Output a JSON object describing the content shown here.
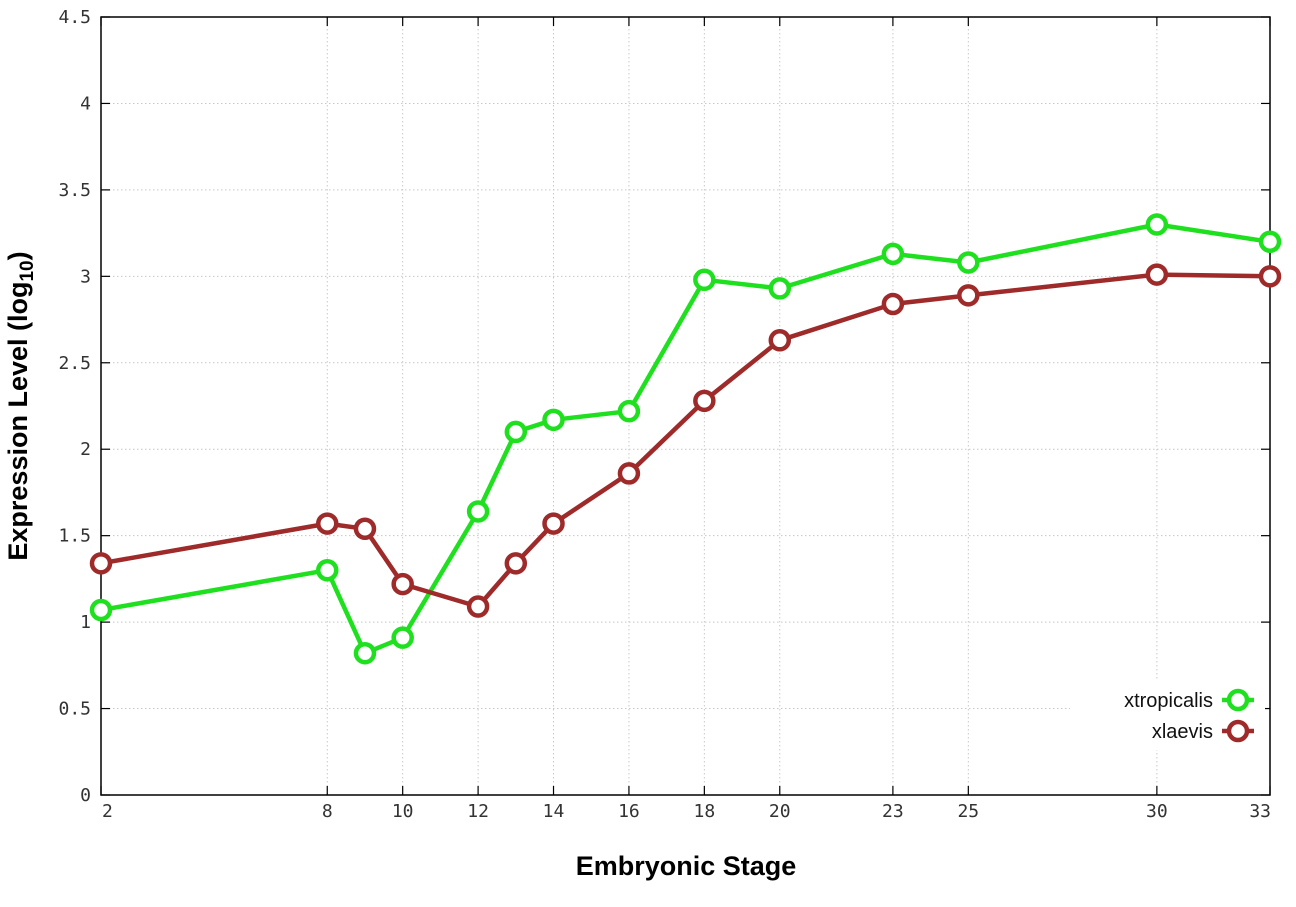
{
  "chart_data": {
    "type": "line",
    "title": "",
    "xlabel": "Embryonic Stage",
    "ylabel_main": "Expression Level (log",
    "ylabel_sub": "10",
    "ylabel_close": ")",
    "xlim": [
      2,
      33
    ],
    "ylim": [
      0,
      4.5
    ],
    "xticks": [
      2,
      8,
      10,
      12,
      14,
      16,
      18,
      20,
      23,
      25,
      30,
      33
    ],
    "yticks": [
      0,
      0.5,
      1,
      1.5,
      2,
      2.5,
      3,
      3.5,
      4,
      4.5
    ],
    "ytick_labels": [
      "0",
      "0.5",
      "1",
      "1.5",
      "2",
      "2.5",
      "3",
      "3.5",
      "4",
      "4.5"
    ],
    "grid": true,
    "legend_position": "bottom-right",
    "x": [
      2,
      8,
      9,
      10,
      12,
      13,
      14,
      16,
      18,
      20,
      23,
      25,
      30,
      33
    ],
    "series": [
      {
        "name": "xtropicalis",
        "color": "#1ee01e",
        "values": [
          1.07,
          1.3,
          0.82,
          0.91,
          1.64,
          2.1,
          2.17,
          2.22,
          2.98,
          2.93,
          3.13,
          3.08,
          3.3,
          3.2
        ]
      },
      {
        "name": "xlaevis",
        "color": "#9e2a2a",
        "values": [
          1.34,
          1.57,
          1.54,
          1.22,
          1.09,
          1.34,
          1.57,
          1.86,
          2.28,
          2.63,
          2.84,
          2.89,
          3.01,
          3.0
        ]
      }
    ]
  }
}
